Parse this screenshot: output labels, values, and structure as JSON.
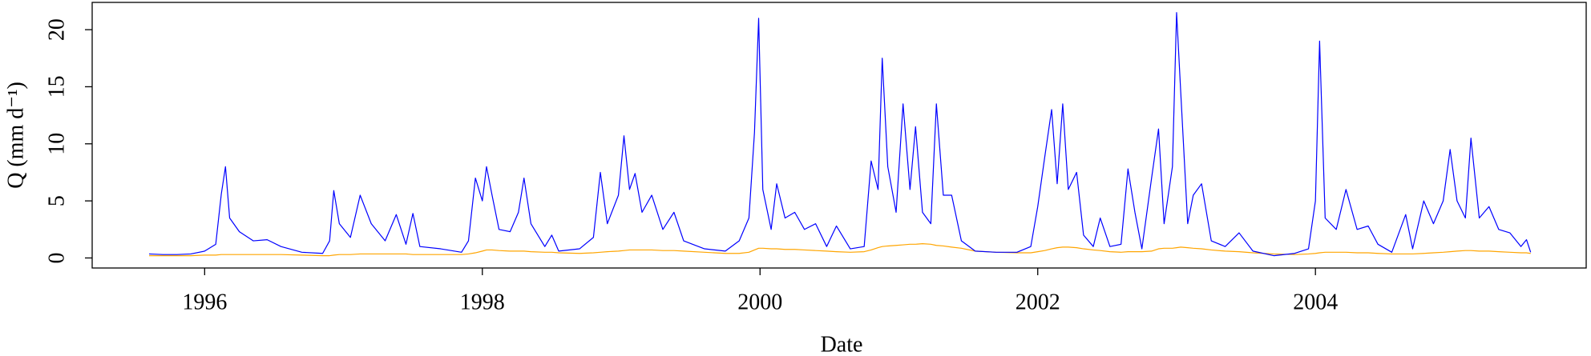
{
  "chart_data": {
    "type": "line",
    "xlabel": "Date",
    "ylabel": "Q (mm d⁻¹)",
    "xlim": [
      1995.19,
      2005.95
    ],
    "xticks": [
      1996,
      1998,
      2000,
      2002,
      2004
    ],
    "ylim": [
      -0.88,
      22.39
    ],
    "yticks": [
      0,
      5,
      10,
      15,
      20
    ],
    "x": [
      1995.6,
      1995.7,
      1995.8,
      1995.9,
      1996.0,
      1996.08,
      1996.12,
      1996.15,
      1996.18,
      1996.25,
      1996.35,
      1996.45,
      1996.55,
      1996.7,
      1996.85,
      1996.9,
      1996.93,
      1996.97,
      1997.05,
      1997.12,
      1997.2,
      1997.3,
      1997.38,
      1997.45,
      1997.5,
      1997.55,
      1997.7,
      1997.85,
      1997.9,
      1997.95,
      1998.0,
      1998.03,
      1998.07,
      1998.12,
      1998.2,
      1998.26,
      1998.3,
      1998.35,
      1998.45,
      1998.5,
      1998.55,
      1998.7,
      1998.8,
      1998.85,
      1998.9,
      1998.98,
      1999.02,
      1999.06,
      1999.1,
      1999.15,
      1999.22,
      1999.3,
      1999.38,
      1999.45,
      1999.6,
      1999.75,
      1999.85,
      1999.92,
      1999.96,
      1999.99,
      2000.02,
      2000.08,
      2000.12,
      2000.18,
      2000.25,
      2000.32,
      2000.4,
      2000.48,
      2000.55,
      2000.65,
      2000.75,
      2000.8,
      2000.85,
      2000.88,
      2000.92,
      2000.98,
      2001.03,
      2001.08,
      2001.12,
      2001.17,
      2001.23,
      2001.27,
      2001.32,
      2001.38,
      2001.45,
      2001.55,
      2001.7,
      2001.85,
      2001.95,
      2002.0,
      2002.05,
      2002.1,
      2002.14,
      2002.18,
      2002.22,
      2002.28,
      2002.33,
      2002.4,
      2002.45,
      2002.52,
      2002.6,
      2002.65,
      2002.7,
      2002.75,
      2002.82,
      2002.87,
      2002.91,
      2002.97,
      2003.0,
      2003.03,
      2003.08,
      2003.12,
      2003.18,
      2003.25,
      2003.35,
      2003.45,
      2003.55,
      2003.7,
      2003.85,
      2003.95,
      2004.0,
      2004.03,
      2004.07,
      2004.15,
      2004.22,
      2004.3,
      2004.38,
      2004.45,
      2004.55,
      2004.65,
      2004.7,
      2004.78,
      2004.85,
      2004.92,
      2004.97,
      2005.02,
      2005.08,
      2005.12,
      2005.18,
      2005.25,
      2005.32,
      2005.4,
      2005.48,
      2005.52,
      2005.55
    ],
    "series": [
      {
        "color": "#0000ff",
        "values": [
          0.35,
          0.3,
          0.3,
          0.35,
          0.6,
          1.2,
          5.6,
          8.0,
          3.5,
          2.3,
          1.5,
          1.6,
          1.0,
          0.5,
          0.4,
          1.5,
          5.9,
          3.0,
          1.8,
          5.5,
          3.0,
          1.5,
          3.8,
          1.2,
          3.9,
          1.0,
          0.8,
          0.5,
          1.5,
          7.0,
          5.0,
          8.0,
          5.5,
          2.5,
          2.3,
          4.0,
          7.0,
          3.0,
          1.0,
          2.0,
          0.6,
          0.8,
          1.8,
          7.5,
          3.0,
          5.5,
          10.7,
          6.0,
          7.4,
          4.0,
          5.5,
          2.5,
          4.0,
          1.5,
          0.8,
          0.6,
          1.5,
          3.5,
          11.0,
          21.0,
          6.0,
          2.5,
          6.5,
          3.5,
          4.0,
          2.5,
          3.0,
          1.0,
          2.8,
          0.8,
          1.0,
          8.5,
          6.0,
          17.5,
          8.0,
          4.0,
          13.5,
          6.0,
          11.5,
          4.0,
          3.0,
          13.5,
          5.5,
          5.5,
          1.5,
          0.6,
          0.5,
          0.5,
          1.0,
          4.5,
          8.8,
          13.0,
          6.5,
          13.5,
          6.0,
          7.5,
          2.0,
          1.0,
          3.5,
          1.0,
          1.2,
          7.8,
          4.0,
          0.8,
          7.0,
          11.3,
          3.0,
          8.0,
          21.5,
          14.5,
          3.0,
          5.5,
          6.5,
          1.5,
          1.0,
          2.2,
          0.6,
          0.2,
          0.4,
          0.8,
          5.0,
          19.0,
          3.5,
          2.5,
          6.0,
          2.5,
          2.8,
          1.2,
          0.5,
          3.8,
          0.8,
          5.0,
          3.0,
          5.0,
          9.5,
          5.0,
          3.5,
          10.5,
          3.5,
          4.5,
          2.5,
          2.2,
          1.0,
          1.6,
          0.5
        ]
      },
      {
        "color": "#ffa500",
        "values": [
          0.2,
          0.2,
          0.2,
          0.2,
          0.25,
          0.25,
          0.3,
          0.3,
          0.3,
          0.3,
          0.3,
          0.3,
          0.3,
          0.25,
          0.2,
          0.2,
          0.25,
          0.3,
          0.3,
          0.35,
          0.35,
          0.35,
          0.35,
          0.35,
          0.3,
          0.3,
          0.3,
          0.3,
          0.35,
          0.45,
          0.6,
          0.7,
          0.7,
          0.65,
          0.6,
          0.6,
          0.6,
          0.55,
          0.5,
          0.5,
          0.45,
          0.4,
          0.45,
          0.5,
          0.55,
          0.6,
          0.65,
          0.7,
          0.7,
          0.7,
          0.7,
          0.65,
          0.65,
          0.6,
          0.5,
          0.4,
          0.4,
          0.5,
          0.7,
          0.85,
          0.85,
          0.8,
          0.8,
          0.75,
          0.75,
          0.7,
          0.65,
          0.6,
          0.55,
          0.5,
          0.55,
          0.7,
          0.9,
          1.0,
          1.05,
          1.1,
          1.15,
          1.2,
          1.2,
          1.25,
          1.2,
          1.1,
          1.05,
          0.95,
          0.85,
          0.6,
          0.5,
          0.45,
          0.45,
          0.55,
          0.65,
          0.8,
          0.9,
          0.95,
          0.95,
          0.9,
          0.8,
          0.7,
          0.65,
          0.55,
          0.5,
          0.55,
          0.55,
          0.55,
          0.6,
          0.8,
          0.85,
          0.85,
          0.9,
          0.95,
          0.9,
          0.85,
          0.8,
          0.7,
          0.6,
          0.55,
          0.45,
          0.35,
          0.3,
          0.35,
          0.4,
          0.45,
          0.5,
          0.5,
          0.5,
          0.45,
          0.45,
          0.4,
          0.35,
          0.35,
          0.35,
          0.4,
          0.45,
          0.5,
          0.55,
          0.6,
          0.65,
          0.65,
          0.6,
          0.6,
          0.55,
          0.5,
          0.45,
          0.45,
          0.4
        ]
      }
    ]
  }
}
